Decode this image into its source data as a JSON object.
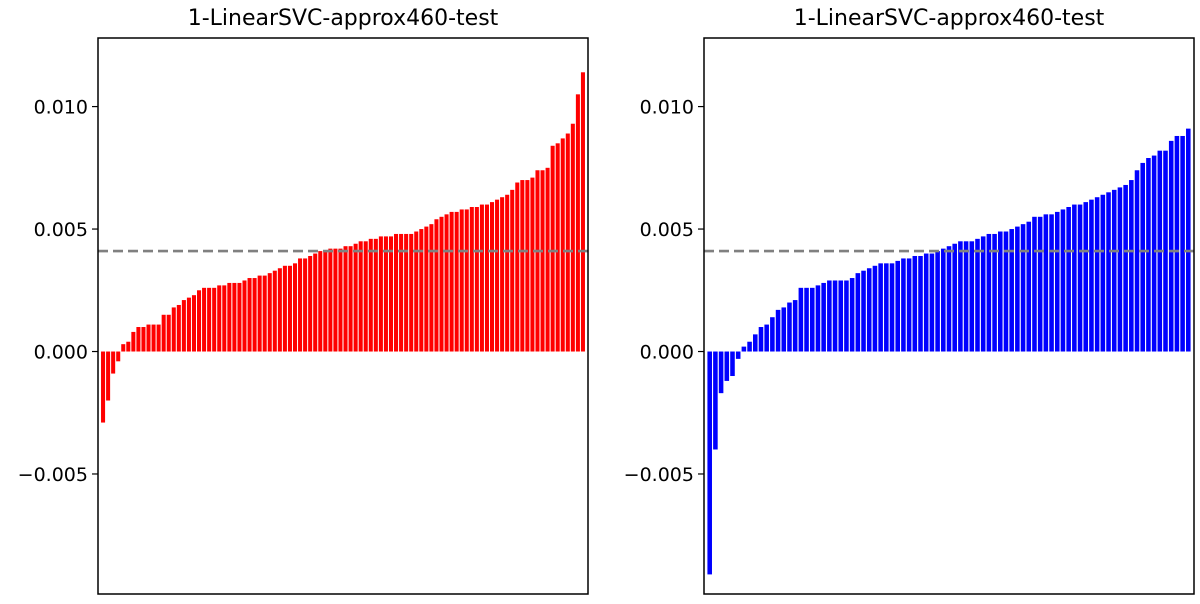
{
  "chart_data": [
    {
      "type": "bar",
      "title": "1-LinearSVC-approx460-test",
      "xlabel": "",
      "ylabel": "",
      "ylim": [
        -0.0099,
        0.0128
      ],
      "yticks": [
        -0.005,
        0.0,
        0.005,
        0.01
      ],
      "ytick_labels": [
        "−0.005",
        "0.000",
        "0.005",
        "0.010"
      ],
      "reference_line": 0.0041,
      "bar_color": "#ff0000",
      "values": [
        -0.0029,
        -0.002,
        -0.0009,
        -0.0004,
        0.0003,
        0.0004,
        0.0008,
        0.001,
        0.001,
        0.0011,
        0.0011,
        0.0011,
        0.0015,
        0.0015,
        0.0018,
        0.0019,
        0.0021,
        0.0022,
        0.0023,
        0.0025,
        0.0026,
        0.0026,
        0.0026,
        0.0027,
        0.0027,
        0.0028,
        0.0028,
        0.0028,
        0.0029,
        0.003,
        0.003,
        0.0031,
        0.0031,
        0.0032,
        0.0033,
        0.0034,
        0.0035,
        0.0035,
        0.0036,
        0.0038,
        0.0038,
        0.0039,
        0.004,
        0.0041,
        0.0041,
        0.0042,
        0.0042,
        0.0042,
        0.0043,
        0.0043,
        0.0044,
        0.0045,
        0.0045,
        0.0046,
        0.0046,
        0.0047,
        0.0047,
        0.0047,
        0.0048,
        0.0048,
        0.0048,
        0.0048,
        0.0049,
        0.005,
        0.0051,
        0.0052,
        0.0054,
        0.0055,
        0.0056,
        0.0057,
        0.0057,
        0.0058,
        0.0058,
        0.0059,
        0.0059,
        0.006,
        0.006,
        0.0061,
        0.0062,
        0.0063,
        0.0064,
        0.0066,
        0.0069,
        0.007,
        0.007,
        0.0071,
        0.0074,
        0.0074,
        0.0075,
        0.0084,
        0.0085,
        0.0087,
        0.0089,
        0.0093,
        0.0105,
        0.0114
      ]
    },
    {
      "type": "bar",
      "title": "1-LinearSVC-approx460-test",
      "xlabel": "",
      "ylabel": "",
      "ylim": [
        -0.0099,
        0.0128
      ],
      "yticks": [
        -0.005,
        0.0,
        0.005,
        0.01
      ],
      "ytick_labels": [
        "−0.005",
        "0.000",
        "0.005",
        "0.010"
      ],
      "reference_line": 0.0041,
      "bar_color": "#0000ff",
      "values": [
        -0.0091,
        -0.004,
        -0.0017,
        -0.0012,
        -0.001,
        -0.0003,
        0.0002,
        0.0004,
        0.0007,
        0.001,
        0.0011,
        0.0014,
        0.0017,
        0.0018,
        0.002,
        0.0021,
        0.0026,
        0.0026,
        0.0026,
        0.0027,
        0.0028,
        0.0029,
        0.0029,
        0.0029,
        0.0029,
        0.003,
        0.0032,
        0.0033,
        0.0034,
        0.0035,
        0.0036,
        0.0036,
        0.0036,
        0.0037,
        0.0038,
        0.0038,
        0.0039,
        0.0039,
        0.004,
        0.004,
        0.0041,
        0.0042,
        0.0043,
        0.0044,
        0.0045,
        0.0045,
        0.0045,
        0.0046,
        0.0047,
        0.0048,
        0.0048,
        0.0049,
        0.0049,
        0.005,
        0.0051,
        0.0052,
        0.0053,
        0.0055,
        0.0055,
        0.0056,
        0.0056,
        0.0057,
        0.0058,
        0.0059,
        0.006,
        0.006,
        0.0061,
        0.0062,
        0.0063,
        0.0064,
        0.0065,
        0.0066,
        0.0067,
        0.0068,
        0.007,
        0.0074,
        0.0077,
        0.0079,
        0.008,
        0.0082,
        0.0082,
        0.0086,
        0.0088,
        0.0088,
        0.0091
      ]
    }
  ]
}
